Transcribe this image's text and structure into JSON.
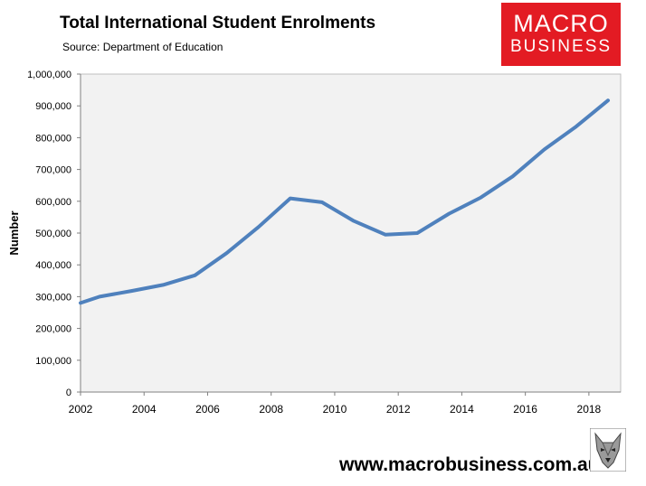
{
  "header": {
    "title": "Total International Student Enrolments",
    "source": "Source: Department of Education"
  },
  "logo": {
    "line1": "MACRO",
    "line2": "BUSINESS",
    "color": "#e31b23"
  },
  "footer": {
    "website": "www.macrobusiness.com.au"
  },
  "chart_data": {
    "type": "line",
    "title": "Total International Student Enrolments",
    "subtitle": "Source: Department of Education",
    "xlabel": "",
    "ylabel": "Number",
    "xlim": [
      2002,
      2019
    ],
    "ylim": [
      0,
      1000000
    ],
    "x_ticks": [
      "2002",
      "2004",
      "2006",
      "2008",
      "2010",
      "2012",
      "2014",
      "2016",
      "2018"
    ],
    "y_ticks": [
      "0",
      "100,000",
      "200,000",
      "300,000",
      "400,000",
      "500,000",
      "600,000",
      "700,000",
      "800,000",
      "900,000",
      "1,000,000"
    ],
    "grid": false,
    "legend": "none",
    "series_color": "#4f81bd",
    "plot_background": "#f2f2f2",
    "series": [
      {
        "x": [
          2002.0,
          2002.6,
          2003.6,
          2004.6,
          2005.6,
          2006.6,
          2007.6,
          2008.6,
          2009.6,
          2010.6,
          2011.6,
          2012.6,
          2013.6,
          2014.6,
          2015.6,
          2016.6,
          2017.6,
          2018.6
        ],
        "values": [
          280000,
          300000,
          318000,
          337000,
          367000,
          437000,
          519000,
          609000,
          597000,
          538000,
          495000,
          500000,
          561000,
          612000,
          678000,
          763000,
          835000,
          917000
        ]
      }
    ]
  }
}
